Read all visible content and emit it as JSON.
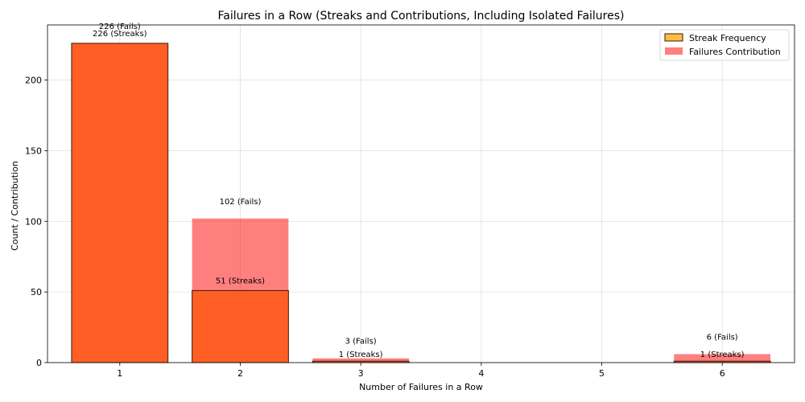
{
  "chart_data": {
    "type": "bar",
    "title": "Failures in a Row (Streaks and Contributions, Including Isolated Failures)",
    "xlabel": "Number of Failures in a Row",
    "ylabel": "Count / Contribution",
    "categories": [
      "1",
      "2",
      "3",
      "4",
      "5",
      "6"
    ],
    "ylim": [
      0,
      239
    ],
    "yticks": [
      0,
      50,
      100,
      150,
      200
    ],
    "grid": true,
    "legend_position": "top-right",
    "series": [
      {
        "name": "Streak Frequency",
        "color": "#ffbe40",
        "values": [
          226,
          51,
          1,
          0,
          0,
          1
        ],
        "labels": [
          "226 (Streaks)",
          "51 (Streaks)",
          "1 (Streaks)",
          "",
          "",
          "1 (Streaks)"
        ]
      },
      {
        "name": "Failures Contribution",
        "color": "#ff0000",
        "values": [
          226,
          102,
          3,
          0,
          0,
          6
        ],
        "labels": [
          "226 (Fails)",
          "102 (Fails)",
          "3 (Fails)",
          "",
          "",
          "6 (Fails)"
        ]
      }
    ],
    "overlap_color": "#ff5e24"
  }
}
